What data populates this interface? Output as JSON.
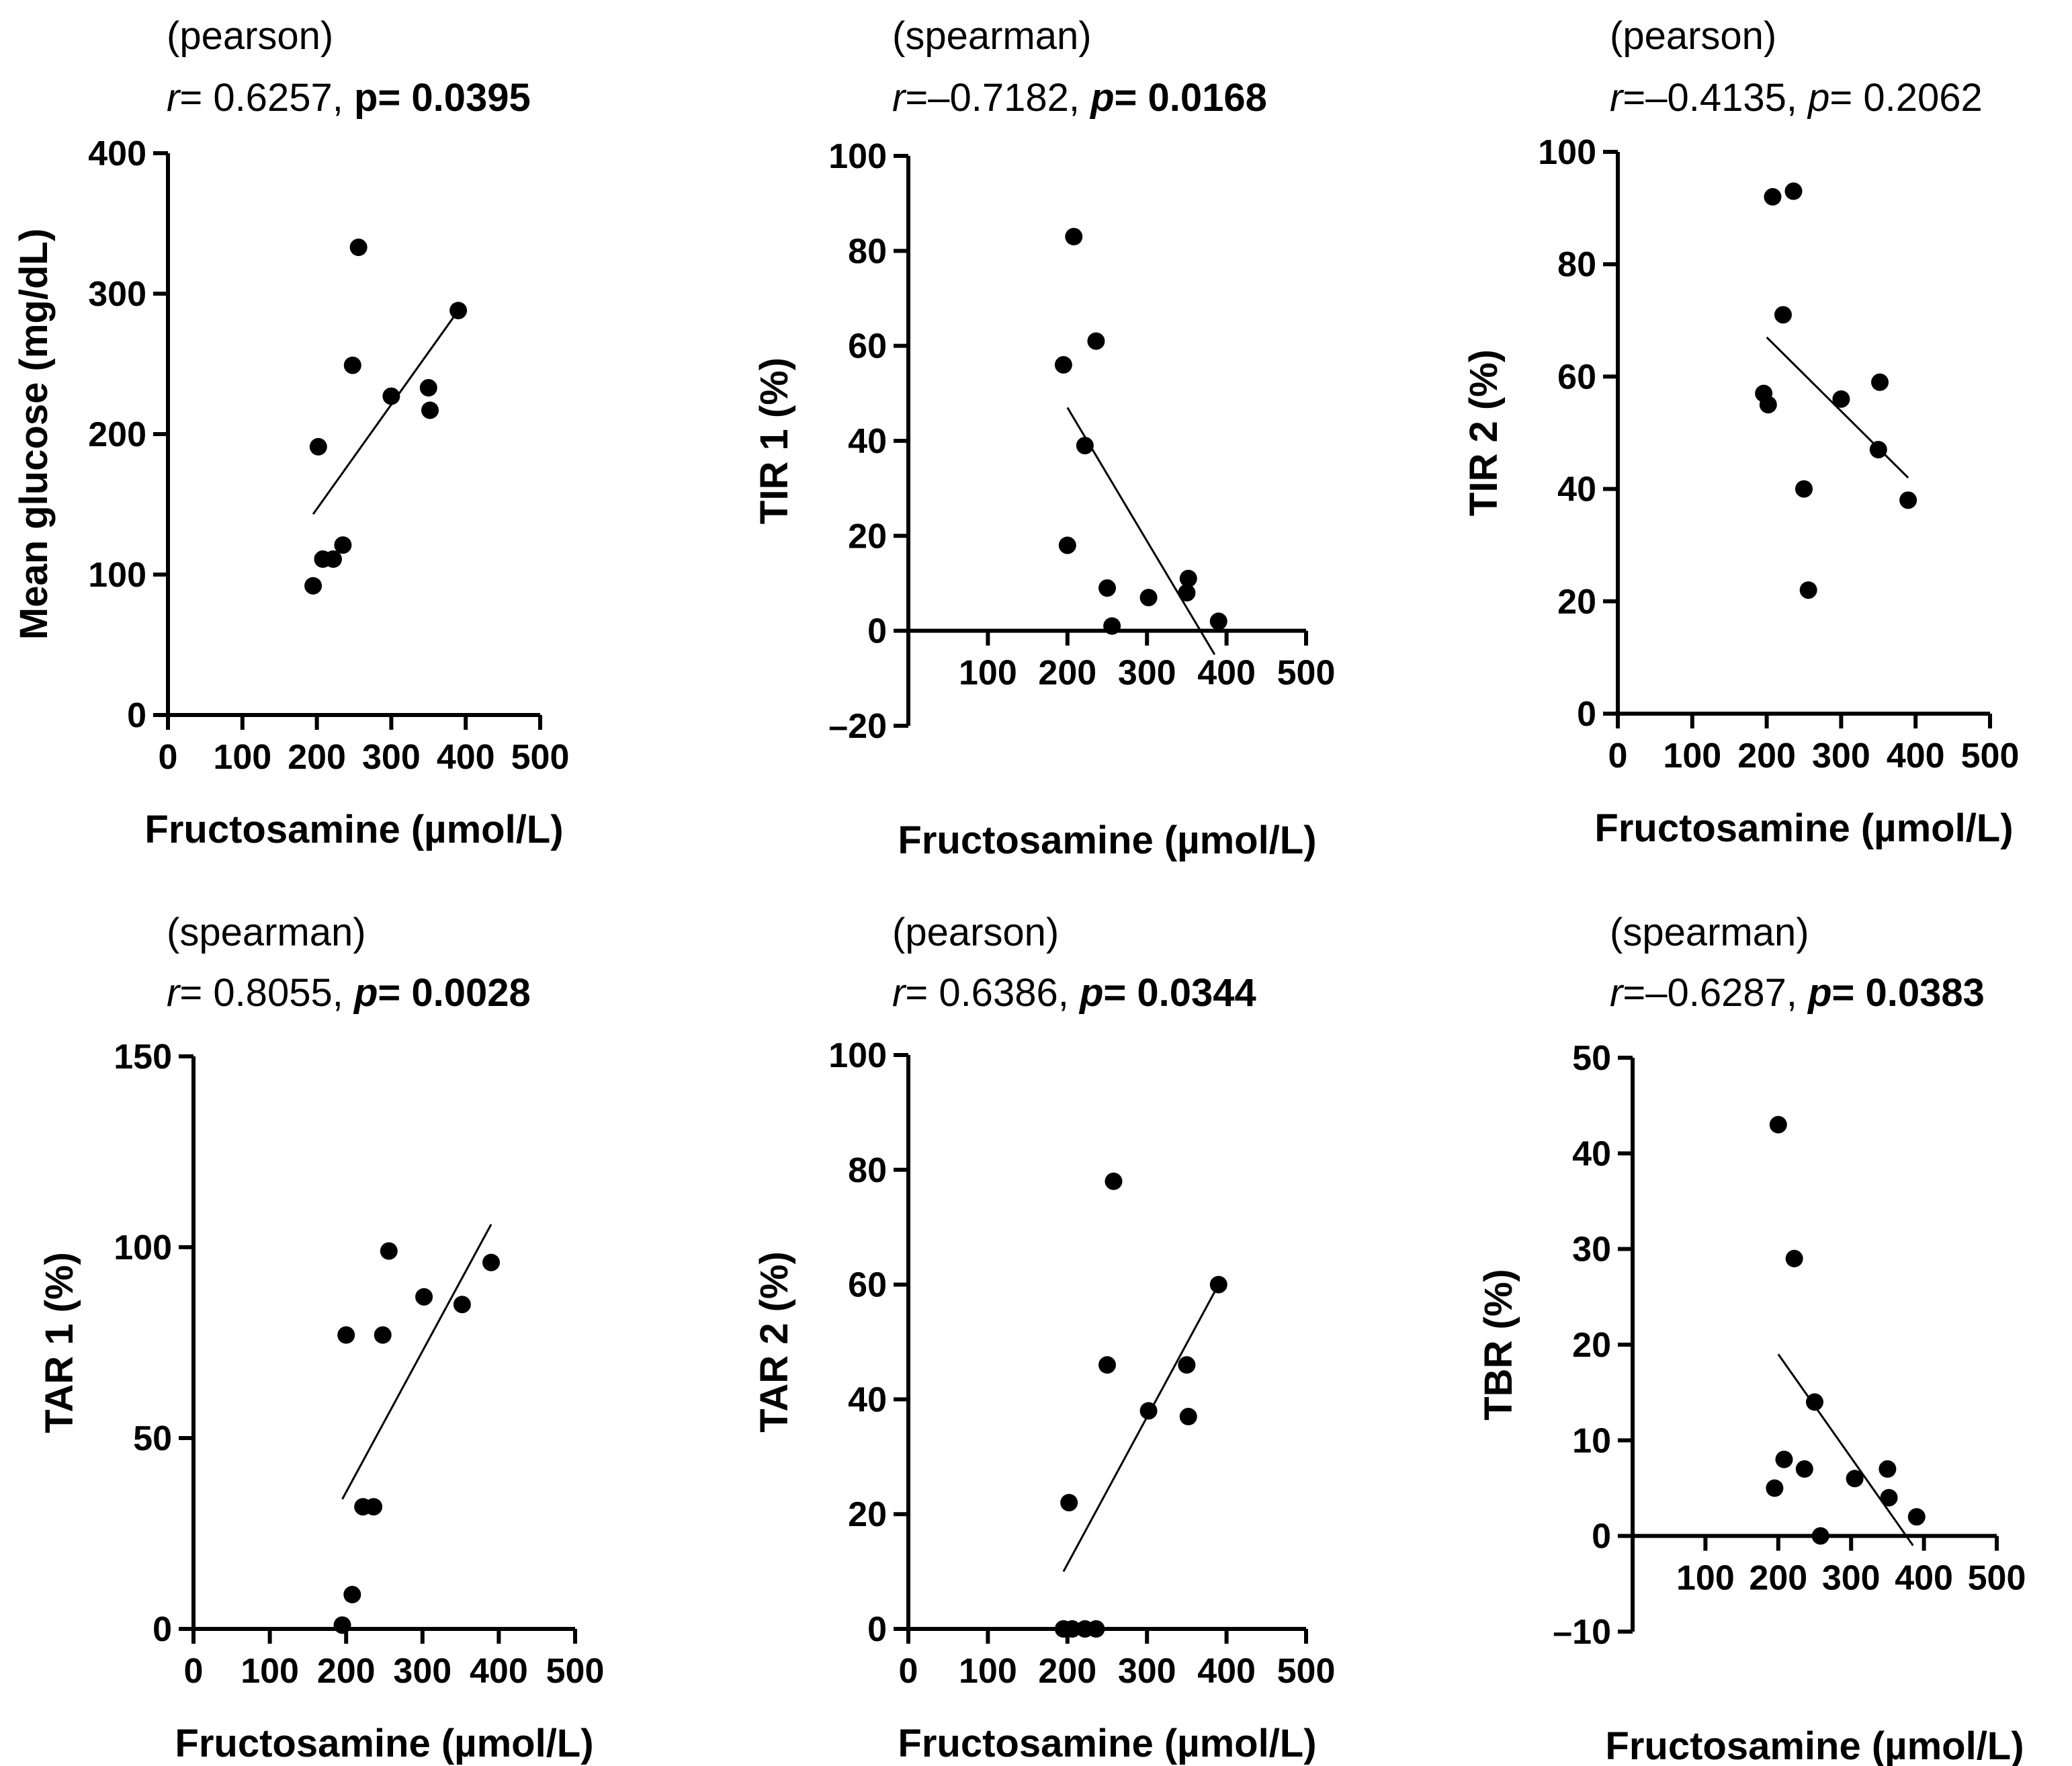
{
  "chart_data": [
    {
      "type": "scatter",
      "method": "(pearson)",
      "stats": {
        "r_label": "r",
        "r_value": "= 0.6257, ",
        "p_label": "p",
        "p_italic": false,
        "p_value": "= 0.0395",
        "p_bold": true
      },
      "xlabel": "Fructosamine (µmol/L)",
      "ylabel": "Mean glucose (mg/dL)",
      "xlim": [
        0,
        500
      ],
      "ylim": [
        0,
        400
      ],
      "xticks": [
        0,
        100,
        200,
        300,
        400,
        500
      ],
      "xtick_labels": [
        "0",
        "100",
        "200",
        "300",
        "400",
        "500"
      ],
      "yticks": [
        0,
        100,
        200,
        300,
        400
      ],
      "ytick_labels": [
        "0",
        "100",
        "200",
        "300",
        "400"
      ],
      "points": [
        [
          195,
          92
        ],
        [
          202,
          191
        ],
        [
          208,
          111
        ],
        [
          222,
          111
        ],
        [
          235,
          121
        ],
        [
          248,
          249
        ],
        [
          256,
          333
        ],
        [
          300,
          227
        ],
        [
          350,
          233
        ],
        [
          352,
          217
        ],
        [
          390,
          288
        ]
      ],
      "fit": [
        [
          195,
          143
        ],
        [
          390,
          288
        ]
      ]
    },
    {
      "type": "scatter",
      "method": "(spearman)",
      "stats": {
        "r_label": "r",
        "r_value": "=–0.7182, ",
        "p_label": "p",
        "p_italic": true,
        "p_value": "= 0.0168",
        "p_bold": true
      },
      "xlabel": "Fructosamine (µmol/L)",
      "ylabel": "TIR 1 (%)",
      "xlim": [
        0,
        500
      ],
      "ylim": [
        -20,
        100
      ],
      "xticks": [
        100,
        200,
        300,
        400,
        500
      ],
      "xtick_labels": [
        "100",
        "200",
        "300",
        "400",
        "500"
      ],
      "yticks": [
        -20,
        0,
        20,
        40,
        60,
        80,
        100
      ],
      "ytick_labels": [
        "–20",
        "0",
        "20",
        "40",
        "60",
        "80",
        "100"
      ],
      "points": [
        [
          195,
          56
        ],
        [
          200,
          18
        ],
        [
          208,
          83
        ],
        [
          222,
          39
        ],
        [
          236,
          61
        ],
        [
          250,
          9
        ],
        [
          256,
          1
        ],
        [
          302,
          7
        ],
        [
          350,
          8
        ],
        [
          352,
          11
        ],
        [
          390,
          2
        ]
      ],
      "fit": [
        [
          200,
          47
        ],
        [
          385,
          -5
        ]
      ]
    },
    {
      "type": "scatter",
      "method": "(pearson)",
      "stats": {
        "r_label": "r",
        "r_value": "=–0.4135, ",
        "p_label": "p",
        "p_italic": true,
        "p_value": "= 0.2062",
        "p_bold": false
      },
      "xlabel": "Fructosamine (µmol/L)",
      "ylabel": "TIR 2 (%)",
      "xlim": [
        0,
        500
      ],
      "ylim": [
        0,
        100
      ],
      "xticks": [
        0,
        100,
        200,
        300,
        400,
        500
      ],
      "xtick_labels": [
        "0",
        "100",
        "200",
        "300",
        "400",
        "500"
      ],
      "yticks": [
        0,
        20,
        40,
        60,
        80,
        100
      ],
      "ytick_labels": [
        "0",
        "20",
        "40",
        "60",
        "80",
        "100"
      ],
      "points": [
        [
          196,
          57
        ],
        [
          202,
          55
        ],
        [
          208,
          92
        ],
        [
          222,
          71
        ],
        [
          236,
          93
        ],
        [
          250,
          40
        ],
        [
          256,
          22
        ],
        [
          300,
          56
        ],
        [
          350,
          47
        ],
        [
          352,
          59
        ],
        [
          390,
          38
        ]
      ],
      "fit": [
        [
          200,
          67
        ],
        [
          390,
          42
        ]
      ]
    },
    {
      "type": "scatter",
      "method": "(spearman)",
      "stats": {
        "r_label": "r",
        "r_value": "= 0.8055, ",
        "p_label": "p",
        "p_italic": true,
        "p_value": "= 0.0028",
        "p_bold": true
      },
      "xlabel": "Fructosamine (µmol/L)",
      "ylabel": "TAR 1 (%)",
      "xlim": [
        0,
        500
      ],
      "ylim": [
        0,
        150
      ],
      "xticks": [
        0,
        100,
        200,
        300,
        400,
        500
      ],
      "xtick_labels": [
        "0",
        "100",
        "200",
        "300",
        "400",
        "500"
      ],
      "yticks": [
        0,
        50,
        100,
        150
      ],
      "ytick_labels": [
        "0",
        "50",
        "100",
        "150"
      ],
      "points": [
        [
          195,
          1
        ],
        [
          200,
          77
        ],
        [
          208,
          9
        ],
        [
          222,
          32
        ],
        [
          236,
          32
        ],
        [
          248,
          77
        ],
        [
          256,
          99
        ],
        [
          302,
          87
        ],
        [
          352,
          85
        ],
        [
          390,
          96
        ]
      ],
      "fit": [
        [
          195,
          34
        ],
        [
          390,
          106
        ]
      ]
    },
    {
      "type": "scatter",
      "method": "(pearson)",
      "stats": {
        "r_label": "r",
        "r_value": "= 0.6386, ",
        "p_label": "p",
        "p_italic": true,
        "p_value": "= 0.0344",
        "p_bold": true
      },
      "xlabel": "Fructosamine (µmol/L)",
      "ylabel": "TAR 2 (%)",
      "xlim": [
        0,
        500
      ],
      "ylim": [
        0,
        100
      ],
      "xticks": [
        0,
        100,
        200,
        300,
        400,
        500
      ],
      "xtick_labels": [
        "0",
        "100",
        "200",
        "300",
        "400",
        "500"
      ],
      "yticks": [
        0,
        20,
        40,
        60,
        80,
        100
      ],
      "ytick_labels": [
        "0",
        "20",
        "40",
        "60",
        "80",
        "100"
      ],
      "points": [
        [
          195,
          0
        ],
        [
          202,
          22
        ],
        [
          206,
          0
        ],
        [
          222,
          0
        ],
        [
          236,
          0
        ],
        [
          250,
          46
        ],
        [
          258,
          78
        ],
        [
          302,
          38
        ],
        [
          350,
          46
        ],
        [
          352,
          37
        ],
        [
          390,
          60
        ]
      ],
      "fit": [
        [
          195,
          10
        ],
        [
          390,
          60
        ]
      ]
    },
    {
      "type": "scatter",
      "method": "(spearman)",
      "stats": {
        "r_label": "r",
        "r_value": "=–0.6287, ",
        "p_label": "p",
        "p_italic": true,
        "p_value": "= 0.0383",
        "p_bold": true
      },
      "xlabel": "Fructosamine (µmol/L)",
      "ylabel": "TBR (%)",
      "xlim": [
        0,
        500
      ],
      "ylim": [
        -10,
        50
      ],
      "xticks": [
        100,
        200,
        300,
        400,
        500
      ],
      "xtick_labels": [
        "100",
        "200",
        "300",
        "400",
        "500"
      ],
      "yticks": [
        -10,
        0,
        10,
        20,
        30,
        40,
        50
      ],
      "ytick_labels": [
        "–10",
        "0",
        "10",
        "20",
        "30",
        "40",
        "50"
      ],
      "points": [
        [
          195,
          5
        ],
        [
          200,
          43
        ],
        [
          208,
          8
        ],
        [
          222,
          29
        ],
        [
          236,
          7
        ],
        [
          250,
          14
        ],
        [
          258,
          0
        ],
        [
          305,
          6
        ],
        [
          350,
          7
        ],
        [
          352,
          4
        ],
        [
          390,
          2
        ]
      ],
      "fit": [
        [
          200,
          19
        ],
        [
          385,
          -1
        ]
      ]
    }
  ]
}
